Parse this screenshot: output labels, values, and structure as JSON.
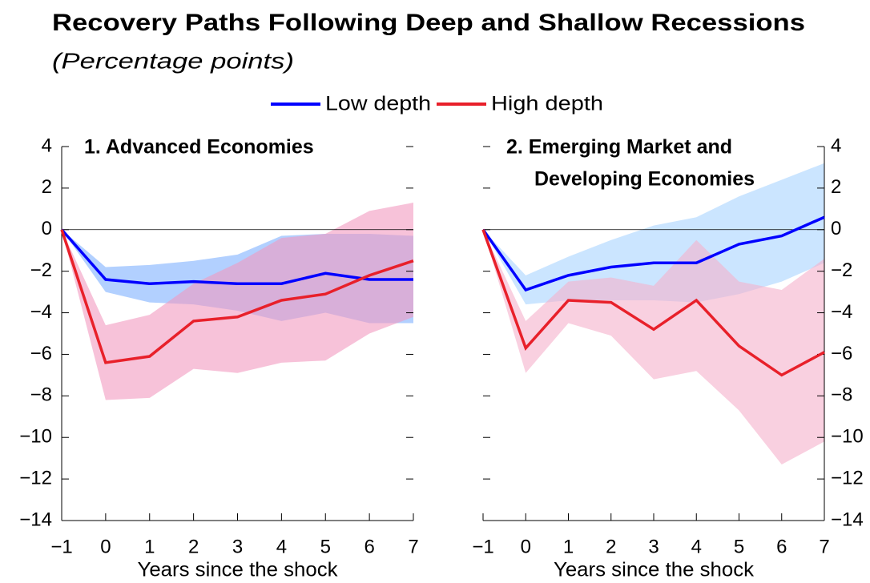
{
  "title": "Recovery Paths Following Deep and Shallow Recessions",
  "subtitle": "(Percentage points)",
  "chart_data": [
    {
      "type": "line",
      "title": [
        "1. Advanced Economies"
      ],
      "x_label": "Years since the shock",
      "y_axis_side": "left",
      "x": [
        -1,
        0,
        1,
        2,
        3,
        4,
        5,
        6,
        7
      ],
      "xlim": [
        -1,
        7
      ],
      "xticks": [
        {
          "value": -1,
          "label": "−1"
        },
        0,
        1,
        2,
        3,
        4,
        5,
        6,
        7
      ],
      "ylim": [
        -14,
        4
      ],
      "yticks": [
        {
          "value": -14,
          "label": "−14"
        },
        {
          "value": -12,
          "label": "−12"
        },
        {
          "value": -10,
          "label": "−10"
        },
        {
          "value": -8,
          "label": "−8"
        },
        {
          "value": -6,
          "label": "−6"
        },
        {
          "value": -4,
          "label": "−4"
        },
        {
          "value": -2,
          "label": "−2"
        },
        0,
        2,
        4
      ],
      "series": [
        {
          "name": "Low depth",
          "color": "#0000ff",
          "band_color": "#7fb0ff",
          "values": [
            0,
            -2.4,
            -2.6,
            -2.5,
            -2.6,
            -2.6,
            -2.1,
            -2.4,
            -2.4
          ],
          "upper": [
            0,
            -1.8,
            -1.7,
            -1.5,
            -1.2,
            -0.3,
            -0.2,
            -0.2,
            -0.3
          ],
          "lower": [
            0,
            -3.0,
            -3.5,
            -3.6,
            -3.9,
            -4.4,
            -4.0,
            -4.5,
            -4.5
          ]
        },
        {
          "name": "High depth",
          "color": "#e8202a",
          "band_color": "#f29ac0",
          "values": [
            0,
            -6.4,
            -6.1,
            -4.4,
            -4.2,
            -3.4,
            -3.1,
            -2.2,
            -1.5
          ],
          "upper": [
            0,
            -4.6,
            -4.1,
            -2.6,
            -1.6,
            -0.4,
            -0.2,
            0.9,
            1.3
          ],
          "lower": [
            0,
            -8.2,
            -8.1,
            -6.7,
            -6.9,
            -6.4,
            -6.3,
            -5.0,
            -4.2
          ]
        }
      ]
    },
    {
      "type": "line",
      "title": [
        "2. Emerging Market and",
        "Developing Economies"
      ],
      "x_label": "Years since the shock",
      "y_axis_side": "right",
      "x": [
        -1,
        0,
        1,
        2,
        3,
        4,
        5,
        6,
        7
      ],
      "xlim": [
        -1,
        7
      ],
      "xticks": [
        {
          "value": -1,
          "label": "−1"
        },
        0,
        1,
        2,
        3,
        4,
        5,
        6,
        7
      ],
      "ylim": [
        -14,
        4
      ],
      "yticks": [
        {
          "value": -14,
          "label": "−14"
        },
        {
          "value": -12,
          "label": "−12"
        },
        {
          "value": -10,
          "label": "−10"
        },
        {
          "value": -8,
          "label": "−8"
        },
        {
          "value": -6,
          "label": "−6"
        },
        {
          "value": -4,
          "label": "−4"
        },
        {
          "value": -2,
          "label": "−2"
        },
        0,
        2,
        4
      ],
      "series": [
        {
          "name": "Low depth",
          "color": "#0000ff",
          "band_color": "#a8d4ff",
          "values": [
            0,
            -2.9,
            -2.2,
            -1.8,
            -1.6,
            -1.6,
            -0.7,
            -0.3,
            0.6
          ],
          "upper": [
            0,
            -2.2,
            -1.3,
            -0.5,
            0.2,
            0.6,
            1.6,
            2.4,
            3.2
          ],
          "lower": [
            0,
            -3.6,
            -3.4,
            -3.4,
            -3.4,
            -3.5,
            -3.1,
            -2.5,
            -1.6
          ]
        },
        {
          "name": "High depth",
          "color": "#e8202a",
          "band_color": "#f5b0cc",
          "values": [
            0,
            -5.7,
            -3.4,
            -3.5,
            -4.8,
            -3.4,
            -5.6,
            -7.0,
            -5.9
          ],
          "upper": [
            0,
            -4.4,
            -2.5,
            -2.3,
            -2.7,
            -0.5,
            -2.5,
            -2.9,
            -1.4
          ],
          "lower": [
            0,
            -6.9,
            -4.5,
            -5.1,
            -7.2,
            -6.8,
            -8.7,
            -11.3,
            -10.2
          ]
        }
      ]
    }
  ]
}
